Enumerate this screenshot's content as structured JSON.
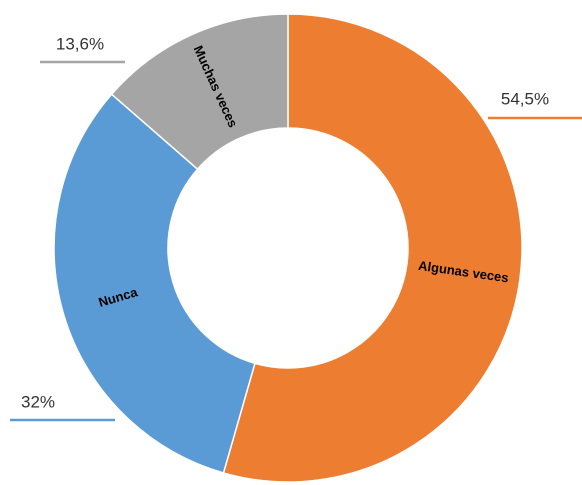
{
  "chart_data": {
    "type": "donut",
    "categories": [
      "Algunas veces",
      "Nunca",
      "Muchas veces"
    ],
    "values": [
      54.5,
      32,
      13.6
    ],
    "value_labels": [
      "54,5%",
      "32%",
      "13,6%"
    ],
    "colors": [
      "#ED7D31",
      "#5B9BD5",
      "#A5A5A5"
    ]
  }
}
